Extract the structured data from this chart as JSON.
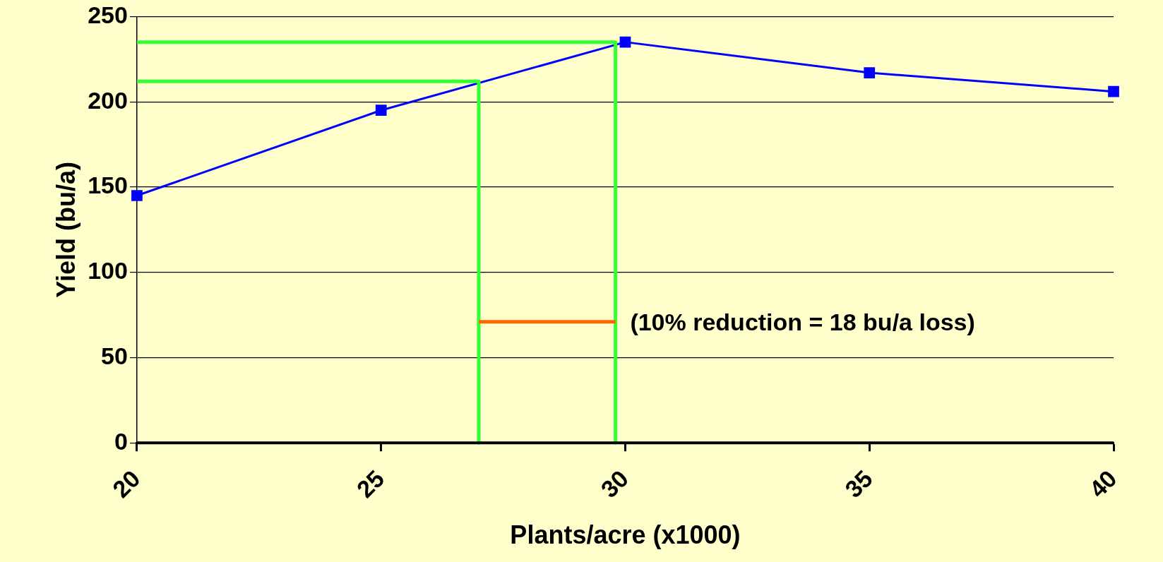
{
  "chart_data": {
    "type": "line",
    "xlabel": "Plants/acre (x1000)",
    "ylabel": "Yield (bu/a)",
    "x": [
      20,
      25,
      30,
      35,
      40
    ],
    "series": [
      {
        "color": "#0000ff",
        "values": [
          145,
          195,
          235,
          217,
          206
        ],
        "marker": "square"
      },
      {
        "type": "line",
        "color": "#33ff33",
        "x": [
          20,
          29.8,
          29.8
        ],
        "values": [
          235,
          235,
          0
        ],
        "marker": "none"
      },
      {
        "type": "line",
        "color": "#33ff33",
        "x": [
          20,
          27,
          27
        ],
        "values": [
          212,
          212,
          0
        ],
        "marker": "none"
      },
      {
        "type": "line",
        "color": "#ff6600",
        "x": [
          27,
          29.8
        ],
        "values": [
          71,
          71
        ],
        "marker": "none"
      }
    ],
    "annotations": [
      "(10% reduction = 18 bu/a loss)"
    ],
    "xlim": [
      20,
      40
    ],
    "xticks": [
      20,
      25,
      30,
      35,
      40
    ],
    "ylim": [
      0,
      250
    ],
    "yticks": [
      0,
      50,
      100,
      150,
      200,
      250
    ],
    "grid": "y",
    "legend": false
  }
}
